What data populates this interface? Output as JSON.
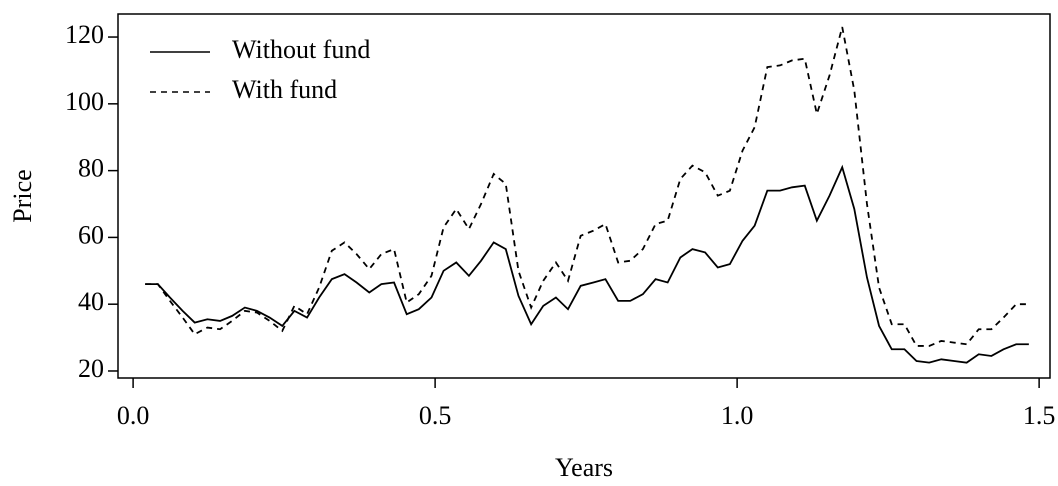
{
  "chart_data": {
    "type": "line",
    "x_label": "Years",
    "y_label": "Price",
    "x": [
      0.02,
      0.041,
      0.061,
      0.082,
      0.102,
      0.123,
      0.144,
      0.164,
      0.185,
      0.205,
      0.226,
      0.247,
      0.267,
      0.288,
      0.308,
      0.329,
      0.35,
      0.37,
      0.391,
      0.411,
      0.432,
      0.453,
      0.473,
      0.494,
      0.514,
      0.535,
      0.556,
      0.576,
      0.597,
      0.617,
      0.638,
      0.659,
      0.679,
      0.7,
      0.72,
      0.741,
      0.762,
      0.782,
      0.803,
      0.823,
      0.844,
      0.865,
      0.885,
      0.906,
      0.926,
      0.947,
      0.968,
      0.988,
      1.009,
      1.029,
      1.05,
      1.071,
      1.091,
      1.112,
      1.132,
      1.153,
      1.174,
      1.194,
      1.215,
      1.235,
      1.256,
      1.277,
      1.297,
      1.318,
      1.338,
      1.359,
      1.38,
      1.4,
      1.421,
      1.441,
      1.462,
      1.483
    ],
    "series": [
      {
        "name": "Without fund",
        "color": "#000000",
        "linestyle": "solid",
        "values": [
          46,
          46,
          42,
          38,
          34.5,
          35.5,
          35,
          36.5,
          39,
          38,
          36,
          33.5,
          38,
          36,
          42,
          47.5,
          49,
          46.5,
          43.5,
          46,
          46.5,
          37,
          38.5,
          42,
          50,
          52.5,
          48.5,
          53,
          58.5,
          56.5,
          42.5,
          34,
          39.5,
          42,
          38.5,
          45.5,
          46.5,
          47.5,
          41,
          41,
          43,
          47.5,
          46.5,
          54,
          56.5,
          55.5,
          51,
          52,
          59,
          63.5,
          74,
          74,
          75,
          75.5,
          65,
          72.5,
          81,
          68.5,
          48,
          33.5,
          26.5,
          26.5,
          23,
          22.5,
          23.5,
          23,
          22.5,
          25,
          24.5,
          26.5,
          28,
          28
        ]
      },
      {
        "name": "With fund",
        "color": "#000000",
        "linestyle": "dashed",
        "values": [
          46,
          46,
          41,
          36,
          31,
          33,
          32.5,
          35,
          38,
          37.5,
          35,
          32,
          39.5,
          37,
          45,
          56,
          58.5,
          55,
          50.5,
          55,
          56.5,
          40.5,
          43,
          48.5,
          63,
          68.5,
          62.5,
          70,
          79,
          76,
          50,
          39,
          47,
          52.5,
          47,
          60.5,
          62,
          64,
          52.5,
          53,
          56.5,
          64,
          65,
          77.5,
          81.5,
          79.5,
          72.5,
          74,
          86,
          93,
          111,
          111.5,
          113,
          113.5,
          97,
          108.5,
          123,
          104,
          70,
          45,
          34,
          34,
          27.5,
          27.5,
          29,
          28.5,
          28,
          32.5,
          32.5,
          36,
          40,
          40
        ]
      }
    ],
    "xlim": [
      -0.025,
      1.518
    ],
    "ylim": [
      17.9,
      126.9
    ],
    "xticks": [
      {
        "value": 0.0,
        "label": "0.0"
      },
      0.5,
      {
        "value": 1.0,
        "label": "1.0"
      },
      1.5
    ],
    "yticks": [
      20,
      40,
      60,
      80,
      100,
      120
    ],
    "legend": "top-left",
    "grid": false
  }
}
